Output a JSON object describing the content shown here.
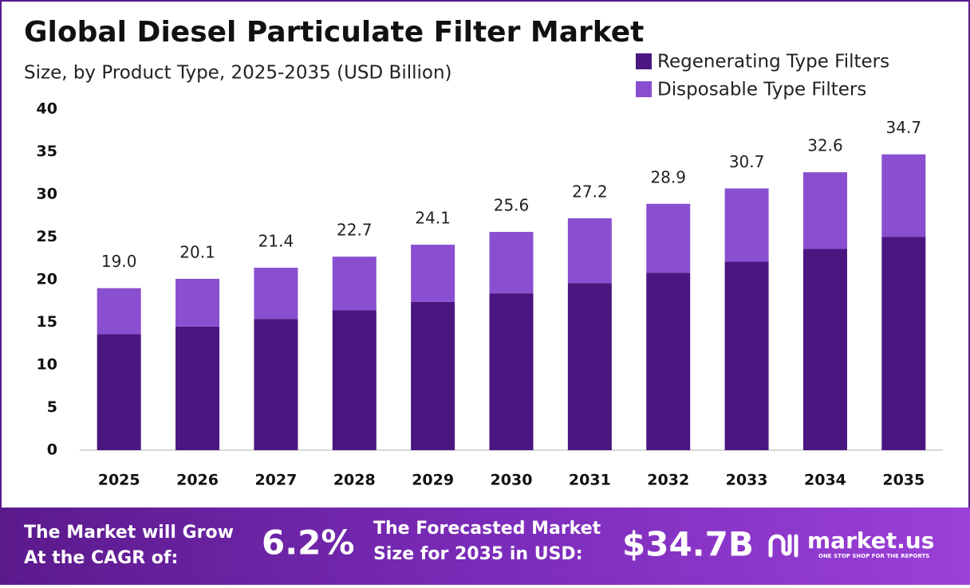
{
  "chart_data": {
    "type": "stacked-bar",
    "title": "Global Diesel Particulate Filter Market",
    "subtitle": "Size, by Product Type, 2025-2035 (USD Billion)",
    "categories": [
      "2025",
      "2026",
      "2027",
      "2028",
      "2029",
      "2030",
      "2031",
      "2032",
      "2033",
      "2034",
      "2035"
    ],
    "series": [
      {
        "name": "Regenerating Type Filters",
        "color": "#4a1680",
        "values": [
          13.6,
          14.5,
          15.4,
          16.4,
          17.4,
          18.4,
          19.6,
          20.8,
          22.1,
          23.6,
          25.0
        ]
      },
      {
        "name": "Disposable Type Filters",
        "color": "#8a4fd0",
        "values": [
          5.4,
          5.6,
          6.0,
          6.3,
          6.7,
          7.2,
          7.6,
          8.1,
          8.6,
          9.0,
          9.7
        ]
      }
    ],
    "totals": [
      19.0,
      20.1,
      21.4,
      22.7,
      24.1,
      25.6,
      27.2,
      28.9,
      30.7,
      32.6,
      34.7
    ],
    "totals_labels": [
      "19.0",
      "20.1",
      "21.4",
      "22.7",
      "24.1",
      "25.6",
      "27.2",
      "28.9",
      "30.7",
      "32.6",
      "34.7"
    ],
    "ylim": [
      0,
      40
    ],
    "yticks": [
      0,
      5,
      10,
      15,
      20,
      25,
      30,
      35,
      40
    ],
    "grid": false,
    "legend": "top-right"
  },
  "footer": {
    "cagr_text": [
      "The Market will Grow",
      "At the CAGR of:"
    ],
    "cagr_value": "6.2%",
    "forecast_text": [
      "The Forecasted Market",
      "Size for 2035 in USD:"
    ],
    "forecast_value": "$34.7B",
    "brand": "market.us",
    "tagline": "ONE STOP SHOP FOR THE REPORTS"
  }
}
